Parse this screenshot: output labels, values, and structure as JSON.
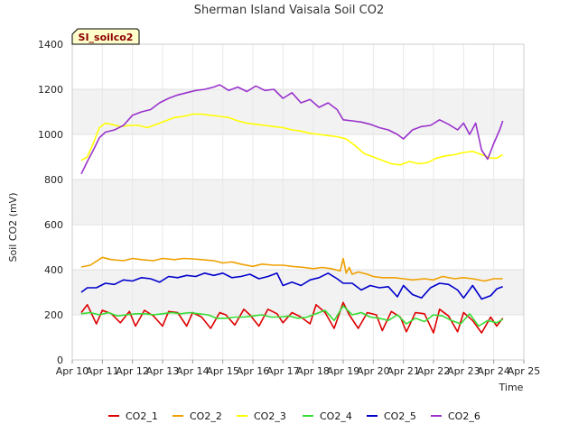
{
  "chart_data": {
    "type": "line",
    "title": "Sherman Island Vaisala Soil CO2",
    "badge": "SI_soilco2",
    "xlabel": "Time",
    "ylabel": "Soil CO2 (mV)",
    "xlim": [
      10,
      25
    ],
    "ylim": [
      0,
      1400
    ],
    "x_ticks": [
      10,
      11,
      12,
      13,
      14,
      15,
      16,
      17,
      18,
      19,
      20,
      21,
      22,
      23,
      24,
      25
    ],
    "x_tick_labels": [
      "Apr 10",
      "Apr 11",
      "Apr 12",
      "Apr 13",
      "Apr 14",
      "Apr 15",
      "Apr 16",
      "Apr 17",
      "Apr 18",
      "Apr 19",
      "Apr 20",
      "Apr 21",
      "Apr 22",
      "Apr 23",
      "Apr 24",
      "Apr 25"
    ],
    "y_ticks": [
      0,
      200,
      400,
      600,
      800,
      1000,
      1200,
      1400
    ],
    "y_tick_labels": [
      "0",
      "200",
      "400",
      "600",
      "800",
      "1000",
      "1200",
      "1400"
    ],
    "grid": true,
    "legend_position": "bottom",
    "series": [
      {
        "name": "CO2_1",
        "color": "#dd0000",
        "x": [
          10.3,
          10.5,
          10.8,
          11.0,
          11.3,
          11.6,
          11.9,
          12.1,
          12.4,
          12.7,
          13.0,
          13.2,
          13.5,
          13.8,
          14.0,
          14.3,
          14.6,
          14.9,
          15.1,
          15.4,
          15.7,
          15.9,
          16.2,
          16.5,
          16.8,
          17.0,
          17.3,
          17.6,
          17.9,
          18.1,
          18.4,
          18.7,
          19.0,
          19.2,
          19.5,
          19.8,
          20.1,
          20.3,
          20.6,
          20.9,
          21.1,
          21.4,
          21.7,
          22.0,
          22.2,
          22.5,
          22.8,
          23.0,
          23.3,
          23.6,
          23.9,
          24.1,
          24.3
        ],
        "y": [
          210,
          245,
          160,
          220,
          205,
          165,
          215,
          150,
          220,
          195,
          150,
          215,
          210,
          150,
          210,
          190,
          140,
          210,
          200,
          155,
          225,
          200,
          150,
          225,
          205,
          165,
          210,
          190,
          160,
          245,
          210,
          140,
          255,
          200,
          140,
          210,
          200,
          130,
          215,
          190,
          125,
          210,
          205,
          120,
          225,
          195,
          125,
          210,
          175,
          120,
          190,
          150,
          185
        ]
      },
      {
        "name": "CO2_2",
        "color": "#f0a000",
        "x": [
          10.3,
          10.6,
          11.0,
          11.3,
          11.7,
          12.0,
          12.3,
          12.7,
          13.0,
          13.4,
          13.7,
          14.0,
          14.3,
          14.7,
          15.0,
          15.3,
          15.6,
          16.0,
          16.3,
          16.7,
          17.0,
          17.3,
          17.7,
          18.0,
          18.3,
          18.6,
          18.9,
          19.0,
          19.1,
          19.2,
          19.3,
          19.5,
          19.8,
          20.0,
          20.3,
          20.7,
          21.0,
          21.3,
          21.7,
          22.0,
          22.3,
          22.7,
          23.0,
          23.3,
          23.7,
          24.0,
          24.3
        ],
        "y": [
          412,
          420,
          455,
          445,
          440,
          450,
          445,
          440,
          450,
          445,
          450,
          448,
          445,
          440,
          430,
          435,
          425,
          415,
          425,
          420,
          420,
          415,
          410,
          405,
          410,
          405,
          395,
          450,
          385,
          410,
          380,
          390,
          380,
          370,
          365,
          365,
          360,
          355,
          360,
          355,
          370,
          360,
          365,
          360,
          350,
          360,
          360
        ]
      },
      {
        "name": "CO2_3",
        "color": "#ffff00",
        "x": [
          10.3,
          10.5,
          10.7,
          10.9,
          11.1,
          11.3,
          11.6,
          11.9,
          12.2,
          12.5,
          12.8,
          13.1,
          13.4,
          13.7,
          14.0,
          14.3,
          14.6,
          14.9,
          15.2,
          15.5,
          15.8,
          16.1,
          16.4,
          16.7,
          17.0,
          17.3,
          17.6,
          17.9,
          18.2,
          18.5,
          18.8,
          19.1,
          19.4,
          19.7,
          20.0,
          20.3,
          20.6,
          20.9,
          21.2,
          21.5,
          21.8,
          22.1,
          22.4,
          22.7,
          23.0,
          23.3,
          23.6,
          23.9,
          24.1,
          24.3
        ],
        "y": [
          885,
          900,
          960,
          1030,
          1050,
          1045,
          1035,
          1040,
          1040,
          1030,
          1045,
          1060,
          1075,
          1080,
          1090,
          1090,
          1085,
          1080,
          1075,
          1060,
          1050,
          1045,
          1040,
          1035,
          1030,
          1020,
          1015,
          1005,
          1000,
          995,
          990,
          980,
          950,
          915,
          900,
          885,
          870,
          865,
          880,
          870,
          875,
          895,
          905,
          910,
          920,
          925,
          910,
          895,
          895,
          910
        ]
      },
      {
        "name": "CO2_4",
        "color": "#33dd33",
        "x": [
          10.3,
          10.6,
          10.9,
          11.2,
          11.5,
          11.8,
          12.1,
          12.4,
          12.7,
          13.0,
          13.3,
          13.6,
          13.9,
          14.2,
          14.5,
          14.8,
          15.1,
          15.4,
          15.7,
          16.0,
          16.3,
          16.6,
          16.9,
          17.2,
          17.5,
          17.8,
          18.1,
          18.4,
          18.7,
          19.0,
          19.3,
          19.6,
          19.9,
          20.2,
          20.5,
          20.8,
          21.1,
          21.4,
          21.7,
          22.0,
          22.3,
          22.6,
          22.9,
          23.2,
          23.5,
          23.8,
          24.1,
          24.3
        ],
        "y": [
          205,
          210,
          200,
          210,
          195,
          200,
          205,
          205,
          200,
          205,
          210,
          205,
          210,
          205,
          200,
          185,
          185,
          190,
          190,
          195,
          200,
          190,
          190,
          195,
          185,
          190,
          205,
          220,
          175,
          240,
          200,
          210,
          190,
          185,
          175,
          200,
          160,
          185,
          170,
          200,
          195,
          175,
          160,
          205,
          150,
          175,
          165,
          180
        ]
      },
      {
        "name": "CO2_5",
        "color": "#0000cc",
        "x": [
          10.3,
          10.5,
          10.8,
          11.1,
          11.4,
          11.7,
          12.0,
          12.3,
          12.6,
          12.9,
          13.2,
          13.5,
          13.8,
          14.1,
          14.4,
          14.7,
          15.0,
          15.3,
          15.6,
          15.9,
          16.2,
          16.5,
          16.8,
          17.0,
          17.3,
          17.6,
          17.9,
          18.2,
          18.5,
          18.8,
          19.0,
          19.3,
          19.6,
          19.9,
          20.2,
          20.5,
          20.8,
          21.0,
          21.3,
          21.6,
          21.9,
          22.2,
          22.5,
          22.8,
          23.0,
          23.3,
          23.6,
          23.9,
          24.1,
          24.3
        ],
        "y": [
          300,
          320,
          320,
          340,
          335,
          355,
          350,
          365,
          360,
          345,
          370,
          365,
          375,
          370,
          385,
          375,
          385,
          365,
          370,
          380,
          360,
          370,
          385,
          330,
          345,
          330,
          355,
          365,
          385,
          360,
          340,
          340,
          310,
          330,
          320,
          325,
          280,
          330,
          290,
          275,
          320,
          340,
          335,
          310,
          275,
          330,
          270,
          285,
          315,
          325
        ]
      },
      {
        "name": "CO2_6",
        "color": "#9933cc",
        "x": [
          10.3,
          10.5,
          10.7,
          10.9,
          11.1,
          11.4,
          11.7,
          12.0,
          12.3,
          12.6,
          12.9,
          13.2,
          13.5,
          13.8,
          14.1,
          14.4,
          14.7,
          14.9,
          15.2,
          15.5,
          15.8,
          16.1,
          16.4,
          16.7,
          17.0,
          17.3,
          17.6,
          17.9,
          18.2,
          18.5,
          18.8,
          19.0,
          19.3,
          19.6,
          19.9,
          20.2,
          20.5,
          20.8,
          21.0,
          21.3,
          21.6,
          21.9,
          22.2,
          22.5,
          22.8,
          23.0,
          23.2,
          23.4,
          23.6,
          23.8,
          24.0,
          24.2,
          24.3
        ],
        "y": [
          825,
          880,
          930,
          985,
          1010,
          1020,
          1040,
          1085,
          1100,
          1110,
          1140,
          1160,
          1175,
          1185,
          1195,
          1200,
          1210,
          1220,
          1195,
          1210,
          1190,
          1215,
          1195,
          1200,
          1160,
          1185,
          1140,
          1155,
          1120,
          1140,
          1110,
          1065,
          1060,
          1055,
          1045,
          1030,
          1020,
          1000,
          980,
          1020,
          1035,
          1040,
          1065,
          1045,
          1020,
          1050,
          1000,
          1050,
          930,
          890,
          960,
          1020,
          1060
        ]
      }
    ]
  }
}
